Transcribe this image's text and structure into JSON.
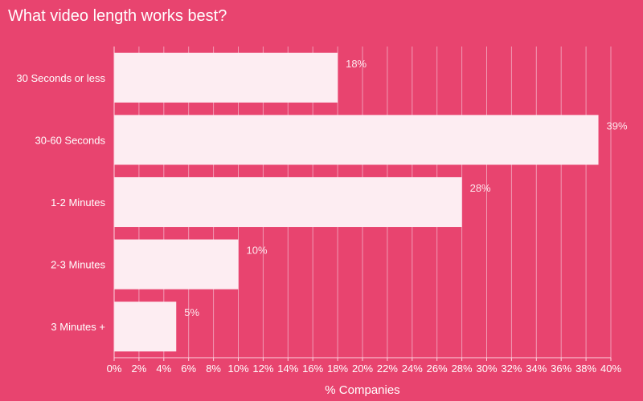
{
  "chart_data": {
    "type": "bar",
    "orientation": "horizontal",
    "title": "What video length works best?",
    "xlabel": "% Companies",
    "ylabel": "",
    "categories": [
      "30 Seconds or less",
      "30-60 Seconds",
      "1-2 Minutes",
      "2-3 Minutes",
      "3 Minutes +"
    ],
    "values": [
      18,
      39,
      28,
      10,
      5
    ],
    "value_labels": [
      "18%",
      "39%",
      "28%",
      "10%",
      "5%"
    ],
    "xlim": [
      0,
      40
    ],
    "x_ticks": [
      0,
      2,
      4,
      6,
      8,
      10,
      12,
      14,
      16,
      18,
      20,
      22,
      24,
      26,
      28,
      30,
      32,
      34,
      36,
      38,
      40
    ],
    "x_tick_labels": [
      "0%",
      "2%",
      "4%",
      "6%",
      "8%",
      "10%",
      "12%",
      "14%",
      "16%",
      "18%",
      "20%",
      "22%",
      "24%",
      "26%",
      "28%",
      "30%",
      "32%",
      "34%",
      "36%",
      "38%",
      "40%"
    ],
    "grid": true,
    "legend": "none"
  },
  "colors": {
    "background": "#e8446f",
    "bar": "#fdedf2",
    "grid": "#f19ab4",
    "text": "#ffffff"
  }
}
